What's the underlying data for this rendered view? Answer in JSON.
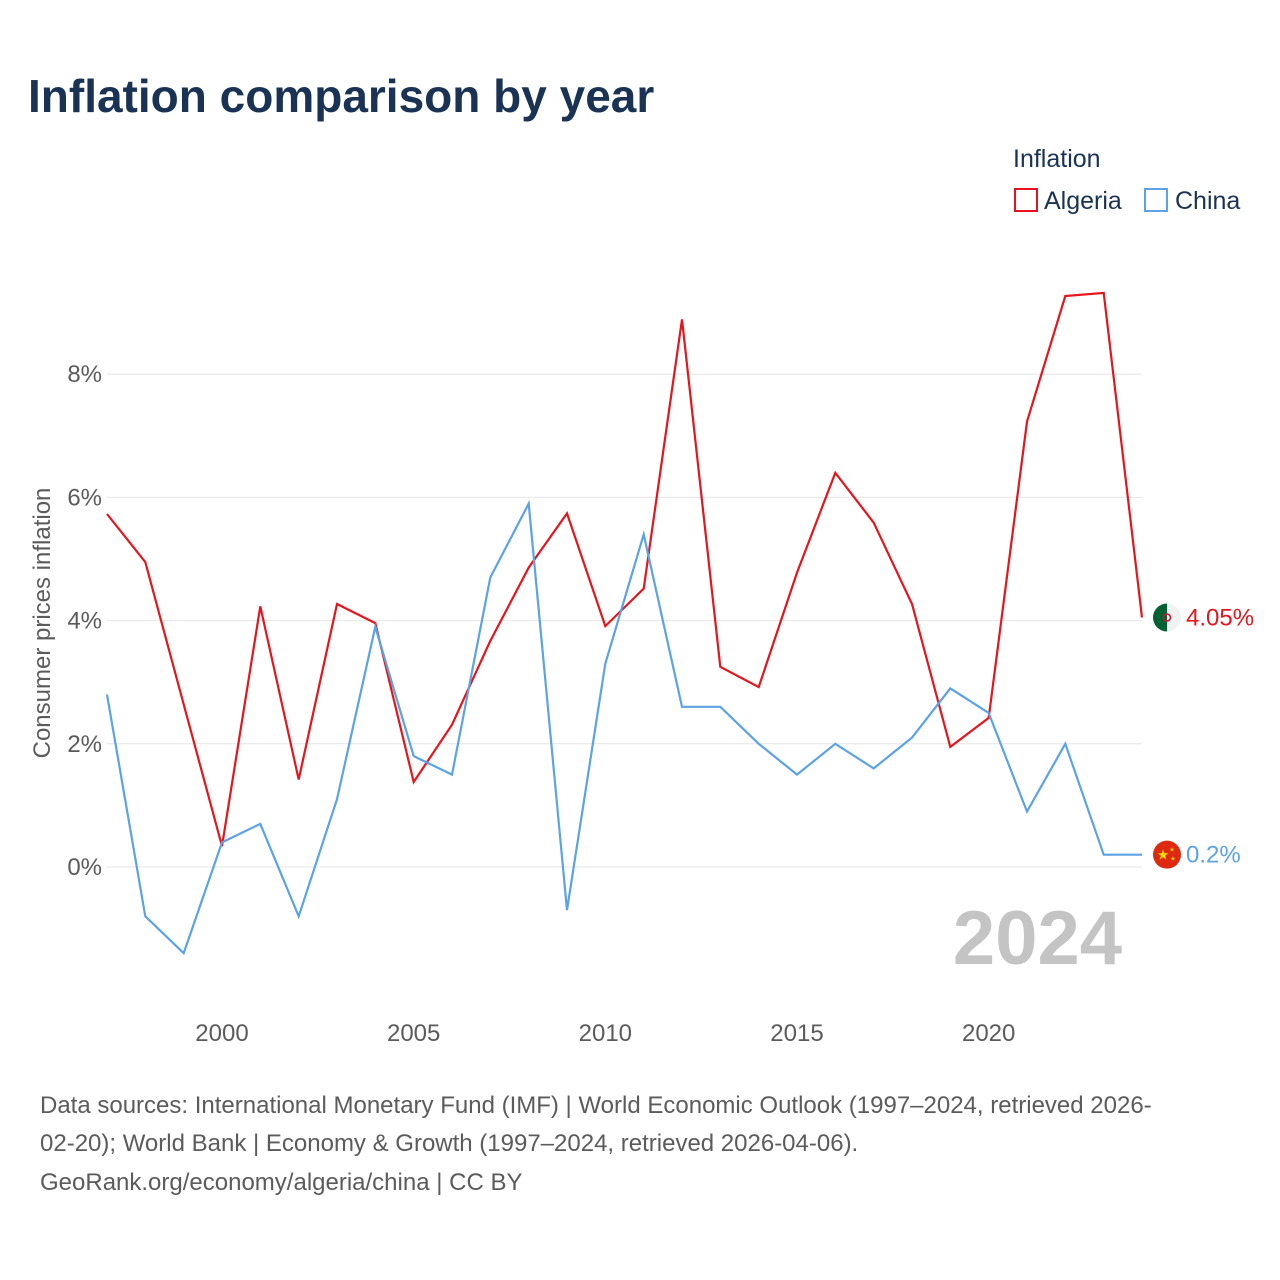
{
  "chart_data": {
    "type": "line",
    "title": "Inflation comparison by year",
    "ylabel": "Consumer prices inflation",
    "xlabel": "",
    "legend_title": "Inflation",
    "current_year_label": "2024",
    "x": [
      1997,
      1998,
      1999,
      2000,
      2001,
      2002,
      2003,
      2004,
      2005,
      2006,
      2007,
      2008,
      2009,
      2010,
      2011,
      2012,
      2013,
      2014,
      2015,
      2016,
      2017,
      2018,
      2019,
      2020,
      2021,
      2022,
      2023,
      2024
    ],
    "xlim": [
      1994,
      2024
    ],
    "ylim": [
      -2,
      10
    ],
    "x_ticks": [
      2000,
      2005,
      2010,
      2015,
      2020
    ],
    "x_tick_labels": [
      "2000",
      "2005",
      "2010",
      "2015",
      "2020"
    ],
    "y_ticks": [
      0,
      2,
      4,
      6,
      8
    ],
    "y_tick_labels": [
      "0%",
      "2%",
      "4%",
      "6%",
      "8%"
    ],
    "series": [
      {
        "name": "Algeria",
        "color": "#e8141c",
        "end_label": "4.05%",
        "flag_icon": "algeria-flag-icon",
        "values": [
          5.73,
          4.95,
          2.64,
          0.34,
          4.23,
          1.42,
          4.27,
          3.96,
          1.38,
          2.31,
          3.67,
          4.86,
          5.74,
          3.91,
          4.52,
          8.89,
          3.25,
          2.92,
          4.78,
          6.4,
          5.59,
          4.27,
          1.95,
          2.42,
          7.23,
          9.27,
          9.32,
          4.05
        ]
      },
      {
        "name": "China",
        "color": "#5ba3e6",
        "end_label": "0.2%",
        "flag_icon": "china-flag-icon",
        "values": [
          2.8,
          -0.8,
          -1.4,
          0.4,
          0.7,
          -0.8,
          1.1,
          3.9,
          1.8,
          1.5,
          4.7,
          5.9,
          -0.7,
          3.3,
          5.4,
          2.6,
          2.6,
          2.0,
          1.5,
          2.0,
          1.6,
          2.1,
          2.9,
          2.5,
          0.9,
          2.0,
          0.2,
          0.2
        ]
      }
    ]
  },
  "sources": {
    "line1": "Data sources: International Monetary Fund (IMF) | World Economic Outlook (1997–2024, retrieved 2026-",
    "line2": "02-20); World Bank | Economy & Growth (1997–2024, retrieved 2026-04-06).",
    "line3": "GeoRank.org/economy/algeria/china | CC BY"
  }
}
